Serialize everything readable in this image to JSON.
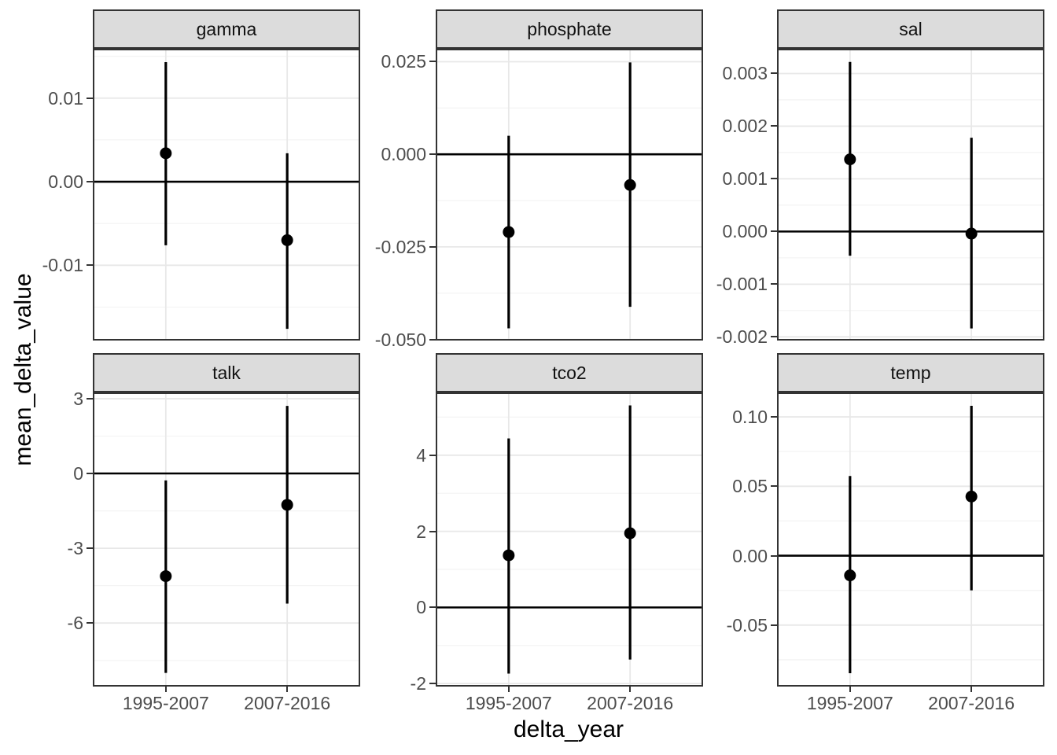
{
  "chart_data": {
    "type": "scatter",
    "subtype": "faceted-pointrange",
    "title": "",
    "xlabel": "delta_year",
    "ylabel": "mean_delta_value",
    "categories": [
      "1995-2007",
      "2007-2016"
    ],
    "reference_line_y": 0,
    "grid": true,
    "legend": "none",
    "facets": [
      {
        "label": "gamma",
        "ylim": [
          -0.019,
          0.0159
        ],
        "yticks": [
          {
            "value": -0.01,
            "label": "-0.01"
          },
          {
            "value": 0.0,
            "label": "0.00"
          },
          {
            "value": 0.01,
            "label": "0.01"
          }
        ],
        "points": [
          {
            "category": "1995-2007",
            "mean": 0.0034,
            "lower": -0.0076,
            "upper": 0.0143
          },
          {
            "category": "2007-2016",
            "mean": -0.007,
            "lower": -0.0176,
            "upper": 0.0034
          }
        ]
      },
      {
        "label": "phosphate",
        "ylim": [
          -0.0503,
          0.0285
        ],
        "yticks": [
          {
            "value": -0.05,
            "label": "-0.050"
          },
          {
            "value": -0.025,
            "label": "-0.025"
          },
          {
            "value": 0.0,
            "label": "0.000"
          },
          {
            "value": 0.025,
            "label": "0.025"
          }
        ],
        "points": [
          {
            "category": "1995-2007",
            "mean": -0.021,
            "lower": -0.047,
            "upper": 0.005
          },
          {
            "category": "2007-2016",
            "mean": -0.0083,
            "lower": -0.0412,
            "upper": 0.0248
          }
        ]
      },
      {
        "label": "sal",
        "ylim": [
          -0.00207,
          0.00347
        ],
        "yticks": [
          {
            "value": -0.002,
            "label": "-0.002"
          },
          {
            "value": -0.001,
            "label": "-0.001"
          },
          {
            "value": 0.0,
            "label": "0.000"
          },
          {
            "value": 0.001,
            "label": "0.001"
          },
          {
            "value": 0.002,
            "label": "0.002"
          },
          {
            "value": 0.003,
            "label": "0.003"
          }
        ],
        "points": [
          {
            "category": "1995-2007",
            "mean": 0.00137,
            "lower": -0.00046,
            "upper": 0.00322
          },
          {
            "category": "2007-2016",
            "mean": -4e-05,
            "lower": -0.00184,
            "upper": 0.00178
          }
        ]
      },
      {
        "label": "talk",
        "ylim": [
          -8.55,
          3.25
        ],
        "yticks": [
          {
            "value": -6,
            "label": "-6"
          },
          {
            "value": -3,
            "label": "-3"
          },
          {
            "value": 0,
            "label": "0"
          },
          {
            "value": 3,
            "label": "3"
          }
        ],
        "points": [
          {
            "category": "1995-2007",
            "mean": -4.12,
            "lower": -8.0,
            "upper": -0.28
          },
          {
            "category": "2007-2016",
            "mean": -1.26,
            "lower": -5.22,
            "upper": 2.71
          }
        ]
      },
      {
        "label": "tco2",
        "ylim": [
          -2.08,
          5.65
        ],
        "yticks": [
          {
            "value": -2,
            "label": "-2"
          },
          {
            "value": 0,
            "label": "0"
          },
          {
            "value": 2,
            "label": "2"
          },
          {
            "value": 4,
            "label": "4"
          }
        ],
        "points": [
          {
            "category": "1995-2007",
            "mean": 1.37,
            "lower": -1.74,
            "upper": 4.44
          },
          {
            "category": "2007-2016",
            "mean": 1.95,
            "lower": -1.37,
            "upper": 5.31
          }
        ]
      },
      {
        "label": "temp",
        "ylim": [
          -0.0943,
          0.1176
        ],
        "yticks": [
          {
            "value": -0.05,
            "label": "-0.05"
          },
          {
            "value": 0.0,
            "label": "0.00"
          },
          {
            "value": 0.05,
            "label": "0.05"
          },
          {
            "value": 0.1,
            "label": "0.10"
          }
        ],
        "points": [
          {
            "category": "1995-2007",
            "mean": -0.0142,
            "lower": -0.0847,
            "upper": 0.0574
          },
          {
            "category": "2007-2016",
            "mean": 0.0426,
            "lower": -0.025,
            "upper": 0.108
          }
        ]
      }
    ]
  },
  "colors": {
    "background": "#FFFFFF",
    "panel_background": "#FFFFFF",
    "strip_background": "#DCDCDC",
    "panel_border": "#333333",
    "grid_major": "#E8E8E8",
    "grid_minor": "#F4F4F4",
    "axis_text": "#4D4D4D",
    "axis_title": "#000000",
    "point": "#000000",
    "reference_line": "#000000"
  }
}
